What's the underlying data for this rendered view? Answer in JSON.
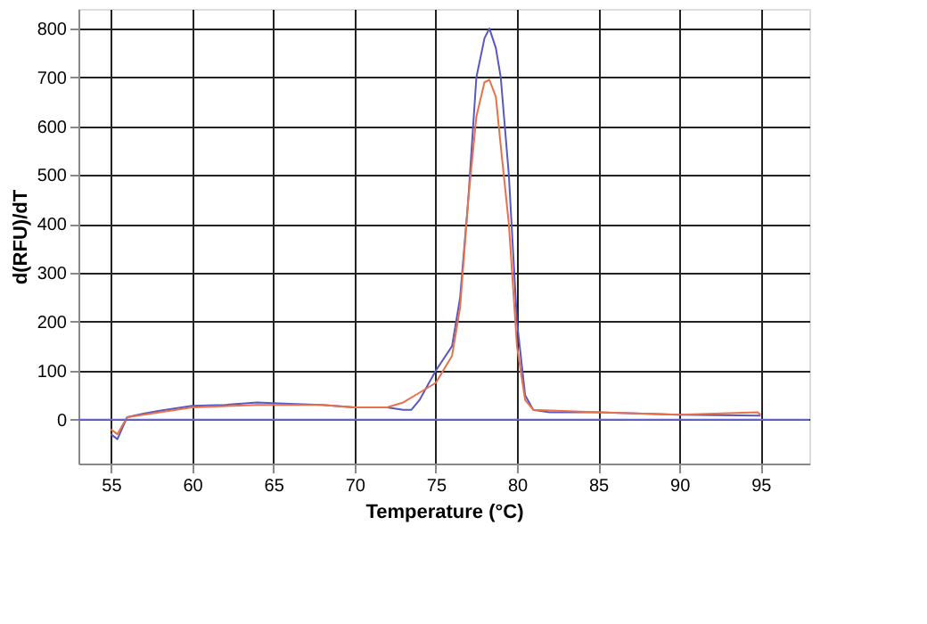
{
  "chart_data": {
    "type": "line",
    "xlabel": "Temperature (°C)",
    "ylabel": "d(RFU)/dT",
    "xlim": [
      53,
      98
    ],
    "ylim": [
      -90,
      840
    ],
    "xticks": [
      55,
      60,
      65,
      70,
      75,
      80,
      85,
      90,
      95
    ],
    "yticks": [
      0,
      100,
      200,
      300,
      400,
      500,
      600,
      700,
      800
    ],
    "grid": true,
    "marker": "none",
    "line_style": "solid",
    "ref_lines": [
      {
        "axis": "y",
        "value": 0,
        "color": "#6a6acc"
      }
    ],
    "series": [
      {
        "color": "#5858c0",
        "x": [
          55,
          55.4,
          56,
          57,
          58,
          60,
          62,
          64,
          66,
          68,
          70,
          72,
          73,
          73.5,
          74,
          75,
          76,
          76.5,
          77,
          77.5,
          78,
          78.3,
          78.7,
          79,
          79.5,
          80,
          80.5,
          81,
          82,
          85,
          90,
          95
        ],
        "values": [
          -30,
          -40,
          5,
          12,
          18,
          28,
          30,
          35,
          32,
          30,
          25,
          25,
          20,
          20,
          40,
          100,
          150,
          250,
          450,
          700,
          780,
          800,
          760,
          700,
          500,
          200,
          50,
          20,
          15,
          15,
          10,
          8
        ]
      },
      {
        "color": "#e8704a",
        "x": [
          55,
          55.4,
          56,
          58,
          60,
          64,
          68,
          70,
          72,
          73,
          74,
          75,
          76,
          76.5,
          77,
          77.5,
          78,
          78.3,
          78.7,
          79,
          79.5,
          80,
          80.5,
          81,
          85,
          90,
          94.8,
          95
        ],
        "values": [
          -20,
          -30,
          5,
          15,
          25,
          30,
          30,
          25,
          25,
          35,
          55,
          75,
          130,
          230,
          450,
          620,
          690,
          695,
          660,
          560,
          400,
          150,
          40,
          20,
          15,
          10,
          15,
          10
        ]
      }
    ]
  }
}
